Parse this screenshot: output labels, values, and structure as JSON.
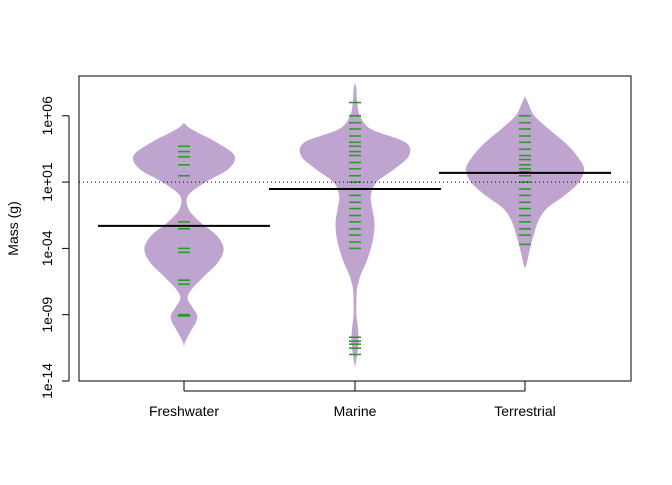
{
  "chart_data": {
    "type": "beanplot",
    "title": "",
    "xlabel": "",
    "ylabel": "Mass (g)",
    "y_scale": "log10",
    "ylim": [
      1e-14,
      1000000000.0
    ],
    "yticks": [
      {
        "value": 1e-14,
        "label": "1e-14"
      },
      {
        "value": 1e-09,
        "label": "1e-09"
      },
      {
        "value": 0.0001,
        "label": "1e-04"
      },
      {
        "value": 10,
        "label": "1e+01"
      },
      {
        "value": 1000000.0,
        "label": "1e+06"
      }
    ],
    "categories": [
      "Freshwater",
      "Marine",
      "Terrestrial"
    ],
    "overall_mean_line": {
      "value": 10,
      "style": "dotted"
    },
    "colors": {
      "bean_fill": "#c0a4d0",
      "observation_line": "#2e9a2e",
      "mean_line": "#000000",
      "axis": "#000000"
    },
    "groups": [
      {
        "name": "Freshwater",
        "mean": 0.005,
        "density_profile": [
          {
            "y": 3.2e-12,
            "w": 0.0
          },
          {
            "y": 1e-11,
            "w": 0.02
          },
          {
            "y": 1e-10,
            "w": 0.12
          },
          {
            "y": 3e-10,
            "w": 0.17
          },
          {
            "y": 1e-09,
            "w": 0.18
          },
          {
            "y": 5e-09,
            "w": 0.1
          },
          {
            "y": 2e-08,
            "w": 0.05
          },
          {
            "y": 1e-07,
            "w": 0.12
          },
          {
            "y": 1e-06,
            "w": 0.3
          },
          {
            "y": 1e-05,
            "w": 0.48
          },
          {
            "y": 0.0001,
            "w": 0.55
          },
          {
            "y": 0.001,
            "w": 0.45
          },
          {
            "y": 0.01,
            "w": 0.22
          },
          {
            "y": 0.1,
            "w": 0.06
          },
          {
            "y": 1,
            "w": 0.06
          },
          {
            "y": 10,
            "w": 0.3
          },
          {
            "y": 100,
            "w": 0.62
          },
          {
            "y": 1000,
            "w": 0.7
          },
          {
            "y": 10000.0,
            "w": 0.45
          },
          {
            "y": 100000.0,
            "w": 0.1
          },
          {
            "y": 300000.0,
            "w": 0.0
          }
        ],
        "observations": [
          1e-09,
          8e-10,
          2e-07,
          4e-07,
          5e-05,
          0.0001,
          0.003,
          0.01,
          30,
          200,
          800,
          2000,
          5000
        ]
      },
      {
        "name": "Marine",
        "mean": 3,
        "density_profile": [
          {
            "y": 1e-13,
            "w": 0.0
          },
          {
            "y": 1e-12,
            "w": 0.03
          },
          {
            "y": 1e-11,
            "w": 0.05
          },
          {
            "y": 1e-10,
            "w": 0.04
          },
          {
            "y": 1e-09,
            "w": 0.02
          },
          {
            "y": 1e-08,
            "w": 0.02
          },
          {
            "y": 1e-07,
            "w": 0.03
          },
          {
            "y": 1e-06,
            "w": 0.08
          },
          {
            "y": 1e-05,
            "w": 0.16
          },
          {
            "y": 0.0001,
            "w": 0.22
          },
          {
            "y": 0.001,
            "w": 0.26
          },
          {
            "y": 0.01,
            "w": 0.27
          },
          {
            "y": 0.1,
            "w": 0.24
          },
          {
            "y": 1,
            "w": 0.22
          },
          {
            "y": 10,
            "w": 0.3
          },
          {
            "y": 100,
            "w": 0.55
          },
          {
            "y": 1000,
            "w": 0.75
          },
          {
            "y": 10000.0,
            "w": 0.7
          },
          {
            "y": 100000.0,
            "w": 0.22
          },
          {
            "y": 1000000.0,
            "w": 0.07
          },
          {
            "y": 10000000.0,
            "w": 0.03
          },
          {
            "y": 100000000.0,
            "w": 0.02
          },
          {
            "y": 300000000.0,
            "w": 0.0
          }
        ],
        "observations": [
          1e-12,
          3e-12,
          6e-12,
          1e-11,
          2e-11,
          0.0001,
          0.0003,
          0.001,
          0.003,
          0.01,
          0.03,
          0.1,
          0.3,
          1,
          3,
          10,
          30,
          100,
          300,
          1000,
          2000,
          5000,
          10000.0,
          30000.0,
          100000.0,
          300000.0,
          1000000.0,
          10000000.0
        ]
      },
      {
        "name": "Terrestrial",
        "mean": 50,
        "density_profile": [
          {
            "y": 3e-06,
            "w": 0.0
          },
          {
            "y": 1e-05,
            "w": 0.03
          },
          {
            "y": 0.0001,
            "w": 0.07
          },
          {
            "y": 0.001,
            "w": 0.12
          },
          {
            "y": 0.01,
            "w": 0.18
          },
          {
            "y": 0.1,
            "w": 0.3
          },
          {
            "y": 1,
            "w": 0.55
          },
          {
            "y": 10,
            "w": 0.75
          },
          {
            "y": 100,
            "w": 0.82
          },
          {
            "y": 1000,
            "w": 0.72
          },
          {
            "y": 10000.0,
            "w": 0.55
          },
          {
            "y": 100000.0,
            "w": 0.33
          },
          {
            "y": 1000000.0,
            "w": 0.13
          },
          {
            "y": 10000000.0,
            "w": 0.04
          },
          {
            "y": 30000000.0,
            "w": 0.0
          }
        ],
        "observations": [
          0.0002,
          0.001,
          0.003,
          0.01,
          0.03,
          0.1,
          0.3,
          1,
          3,
          10,
          30,
          60,
          100,
          200,
          500,
          1000,
          3000,
          10000.0,
          30000.0,
          100000.0,
          300000.0,
          1000000.0
        ]
      }
    ]
  }
}
